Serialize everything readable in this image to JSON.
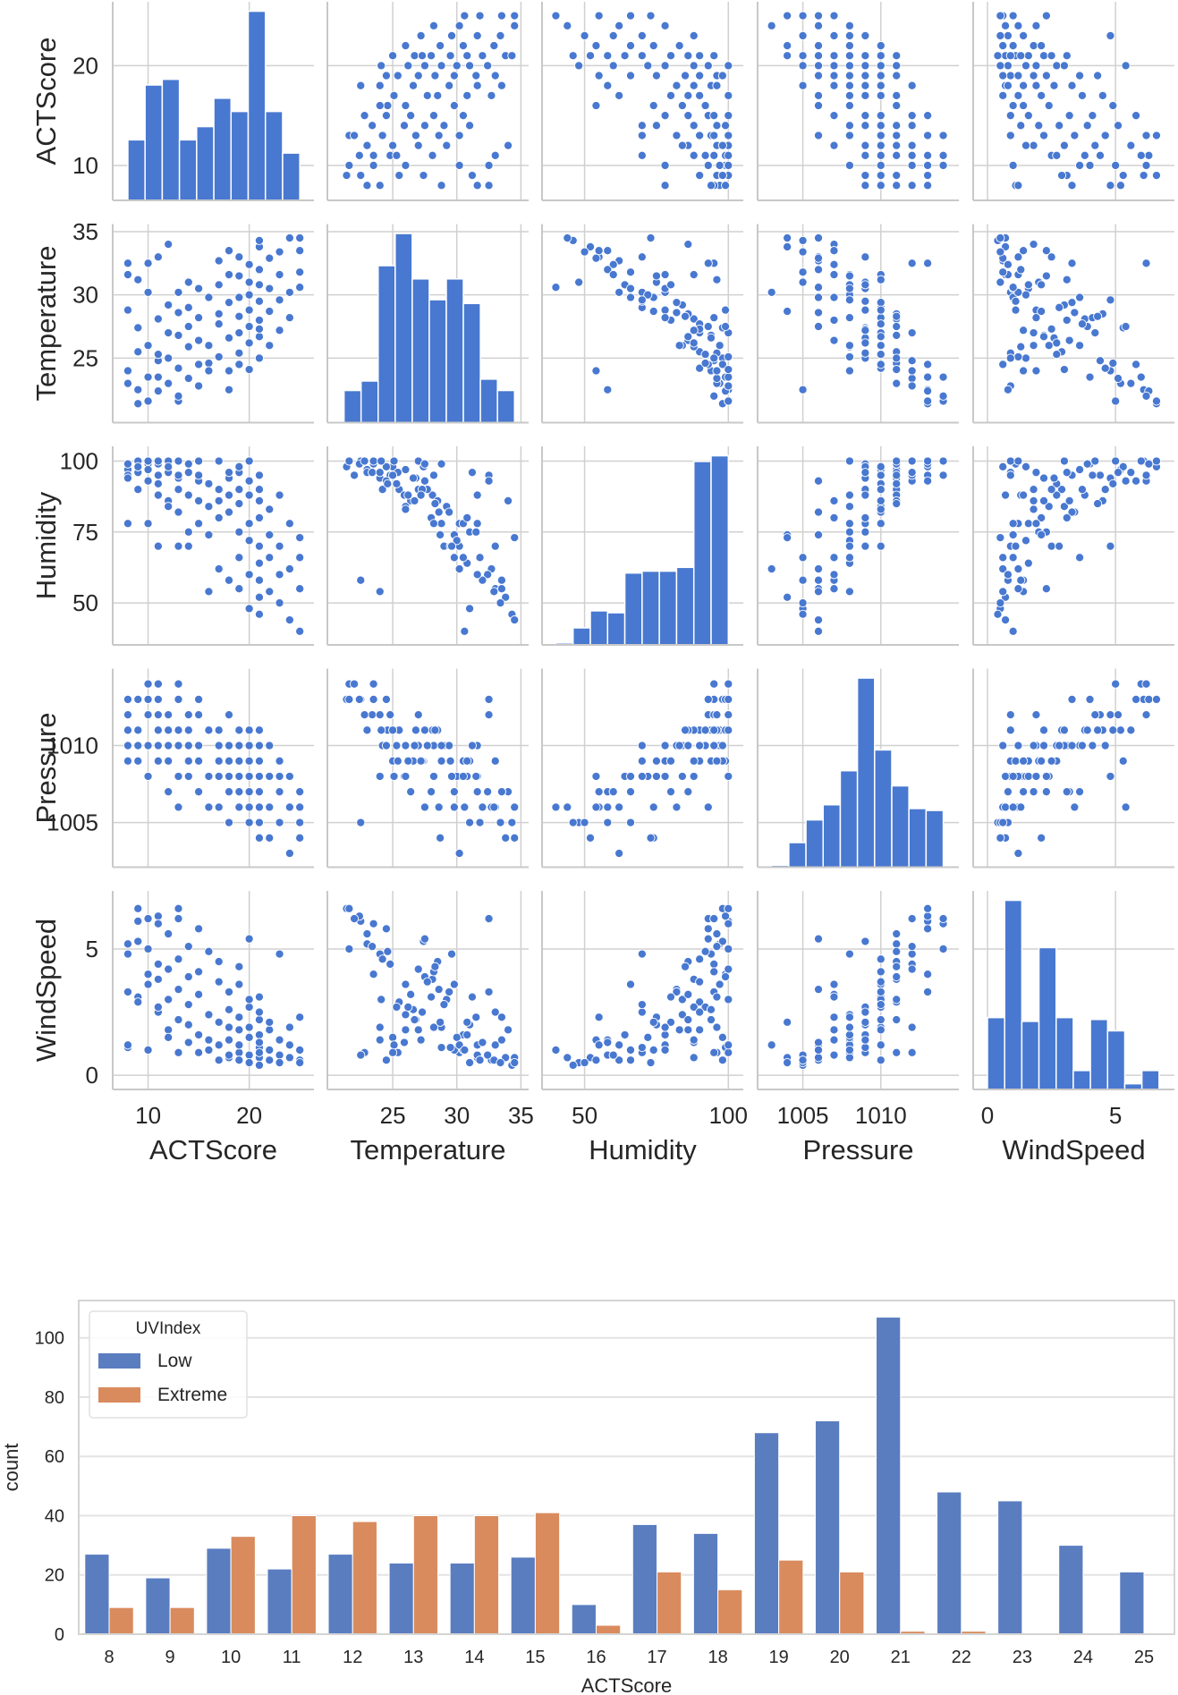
{
  "chart_data": [
    {
      "type": "scatter",
      "kind": "pairplot",
      "point_color": "#4878d0",
      "hist_color": "#4878d0",
      "grid": true,
      "variables": [
        {
          "label": "ACTScore",
          "range": [
            6.5,
            26.4
          ],
          "xticks": [
            10,
            20
          ],
          "yticks": [
            10,
            20
          ],
          "hist_range": [
            8,
            25
          ],
          "hist_relative": [
            0.32,
            0.61,
            0.64,
            0.32,
            0.39,
            0.54,
            0.47,
            1.0,
            0.47,
            0.25
          ]
        },
        {
          "label": "Temperature",
          "range": [
            19.9,
            35.6
          ],
          "xticks": [
            25,
            30,
            35
          ],
          "yticks": [
            25,
            30,
            35
          ],
          "hist_range": [
            21.2,
            34.5
          ],
          "hist_relative": [
            0.17,
            0.22,
            0.83,
            1.0,
            0.76,
            0.65,
            0.76,
            0.63,
            0.23,
            0.17
          ]
        },
        {
          "label": "Humidity",
          "range": [
            35.2,
            105.2
          ],
          "xticks": [
            50,
            100
          ],
          "yticks": [
            50,
            75,
            100
          ],
          "hist_range": [
            40,
            100
          ],
          "hist_relative": [
            0.01,
            0.09,
            0.18,
            0.17,
            0.38,
            0.39,
            0.39,
            0.41,
            0.97,
            1.0
          ]
        },
        {
          "label": "Pressure",
          "range": [
            1002.1,
            1015.0
          ],
          "xticks": [
            1005,
            1010
          ],
          "yticks": [
            1005,
            1010
          ],
          "hist_range": [
            1003,
            1014
          ],
          "hist_relative": [
            0.01,
            0.13,
            0.25,
            0.33,
            0.51,
            1.0,
            0.62,
            0.43,
            0.31,
            0.3
          ]
        },
        {
          "label": "WindSpeed",
          "range": [
            -0.56,
            7.3
          ],
          "xticks": [
            0,
            5
          ],
          "yticks": [
            0,
            5
          ],
          "hist_range": [
            0,
            6.7
          ],
          "hist_relative": [
            0.38,
            1.0,
            0.36,
            0.75,
            0.38,
            0.1,
            0.37,
            0.31,
            0.03,
            0.1
          ]
        }
      ],
      "records": [
        [
          8,
          23.0,
          97,
          1011,
          5.2
        ],
        [
          8,
          28.8,
          99,
          1009,
          1.1
        ],
        [
          8,
          32.5,
          95,
          1013,
          3.3
        ],
        [
          8,
          24.0,
          94,
          1012,
          4.8
        ],
        [
          8,
          31.6,
          78,
          1010,
          1.2
        ],
        [
          9,
          22.5,
          100,
          1013,
          6.1
        ],
        [
          9,
          31.2,
          96,
          1010,
          3.1
        ],
        [
          9,
          25.5,
          90,
          1011,
          2.9
        ],
        [
          9,
          27.4,
          98,
          1009,
          5.3
        ],
        [
          9,
          21.4,
          98,
          1013,
          6.6
        ],
        [
          10,
          23.5,
          99,
          1013,
          4.0
        ],
        [
          10,
          32.5,
          93,
          1012,
          6.2
        ],
        [
          10,
          21.6,
          100,
          1014,
          5.0
        ],
        [
          10,
          26.0,
          97,
          1010,
          3.6
        ],
        [
          10,
          30.2,
          78,
          1008,
          1.0
        ],
        [
          11,
          24.8,
          95,
          1012,
          4.4
        ],
        [
          11,
          28.1,
          88,
          1011,
          3.8
        ],
        [
          11,
          33.0,
          70,
          1009,
          2.5
        ],
        [
          11,
          22.4,
          99,
          1013,
          6.3
        ],
        [
          11,
          25.3,
          92,
          1010,
          2.7
        ],
        [
          11,
          23.5,
          100,
          1014,
          6.0
        ],
        [
          12,
          34.0,
          86,
          1007,
          1.8
        ],
        [
          12,
          27.0,
          100,
          1012,
          4.2
        ],
        [
          12,
          23.0,
          96,
          1011,
          5.6
        ],
        [
          12,
          29.2,
          84,
          1010,
          3.0
        ],
        [
          12,
          25.0,
          98,
          1009,
          1.5
        ],
        [
          13,
          21.6,
          100,
          1013,
          6.6
        ],
        [
          13,
          30.2,
          70,
          1008,
          0.9
        ],
        [
          13,
          26.8,
          94,
          1011,
          2.2
        ],
        [
          13,
          24.2,
          90,
          1010,
          4.6
        ],
        [
          13,
          28.6,
          82,
          1006,
          3.4
        ],
        [
          13,
          22.0,
          95,
          1014,
          6.2
        ],
        [
          14,
          27.5,
          99,
          1011,
          3.9
        ],
        [
          14,
          23.4,
          96,
          1012,
          5.1
        ],
        [
          14,
          31.0,
          75,
          1009,
          2.0
        ],
        [
          14,
          25.9,
          88,
          1008,
          1.3
        ],
        [
          14,
          29.0,
          70,
          1010,
          2.8
        ],
        [
          15,
          24.5,
          93,
          1013,
          5.8
        ],
        [
          15,
          30.5,
          78,
          1009,
          1.6
        ],
        [
          15,
          26.4,
          86,
          1007,
          3.2
        ],
        [
          15,
          28.2,
          95,
          1010,
          4.1
        ],
        [
          15,
          22.8,
          100,
          1012,
          0.9
        ],
        [
          16,
          26.0,
          84,
          1008,
          2.4
        ],
        [
          16,
          29.8,
          74,
          1006,
          1.0
        ],
        [
          16,
          24.6,
          92,
          1011,
          4.9
        ],
        [
          16,
          24.0,
          54,
          1008,
          1.4
        ],
        [
          17,
          30.8,
          80,
          1009,
          2.1
        ],
        [
          17,
          27.7,
          90,
          1010,
          3.7
        ],
        [
          17,
          25.1,
          100,
          1008,
          1.2
        ],
        [
          17,
          32.7,
          62,
          1006,
          0.6
        ],
        [
          17,
          28.5,
          86,
          1011,
          4.5
        ],
        [
          18,
          26.6,
          94,
          1009,
          2.6
        ],
        [
          18,
          33.5,
          58,
          1007,
          1.4
        ],
        [
          18,
          29.4,
          82,
          1010,
          3.3
        ],
        [
          18,
          24.0,
          96,
          1012,
          1.9
        ],
        [
          18,
          31.6,
          88,
          1008,
          0.7
        ],
        [
          18,
          22.5,
          58,
          1005,
          0.8
        ],
        [
          19,
          27.0,
          90,
          1010,
          1.8
        ],
        [
          19,
          31.5,
          75,
          1008,
          2.3
        ],
        [
          19,
          25.4,
          96,
          1009,
          0.9
        ],
        [
          19,
          29.8,
          66,
          1007,
          3.6
        ],
        [
          19,
          33.0,
          55,
          1006,
          1.2
        ],
        [
          19,
          28.3,
          85,
          1011,
          4.3
        ],
        [
          19,
          24.5,
          98,
          1010,
          0.6
        ],
        [
          20,
          30.0,
          72,
          1008,
          1.5
        ],
        [
          20,
          26.2,
          88,
          1009,
          2.7
        ],
        [
          20,
          32.4,
          60,
          1007,
          0.8
        ],
        [
          20,
          28.8,
          78,
          1010,
          1.9
        ],
        [
          20,
          24.1,
          100,
          1011,
          3.0
        ],
        [
          20,
          31.0,
          48,
          1005,
          0.5
        ],
        [
          20,
          27.5,
          93,
          1006,
          5.4
        ],
        [
          21,
          29.5,
          70,
          1009,
          1.1
        ],
        [
          21,
          33.8,
          52,
          1004,
          0.7
        ],
        [
          21,
          26.7,
          86,
          1010,
          2.2
        ],
        [
          21,
          30.8,
          64,
          1008,
          1.6
        ],
        [
          21,
          25.0,
          95,
          1011,
          0.9
        ],
        [
          21,
          28.0,
          80,
          1007,
          3.1
        ],
        [
          21,
          32.0,
          58,
          1006,
          1.3
        ],
        [
          21,
          27.3,
          90,
          1009,
          2.5
        ],
        [
          21,
          34.3,
          46,
          1005,
          0.4
        ],
        [
          22,
          30.5,
          66,
          1008,
          1.0
        ],
        [
          22,
          26.0,
          83,
          1010,
          1.8
        ],
        [
          22,
          32.9,
          54,
          1006,
          0.6
        ],
        [
          22,
          28.7,
          74,
          1004,
          2.1
        ],
        [
          23,
          31.6,
          60,
          1007,
          0.8
        ],
        [
          23,
          27.2,
          88,
          1009,
          1.4
        ],
        [
          23,
          33.4,
          50,
          1005,
          0.5
        ],
        [
          23,
          29.6,
          70,
          1008,
          4.8
        ],
        [
          24,
          30.2,
          62,
          1003,
          1.2
        ],
        [
          24,
          34.5,
          44,
          1006,
          0.7
        ],
        [
          24,
          28.2,
          78,
          1008,
          1.9
        ],
        [
          25,
          31.8,
          66,
          1005,
          0.6
        ],
        [
          25,
          33.5,
          55,
          1007,
          2.3
        ],
        [
          25,
          30.6,
          40,
          1006,
          1.0
        ],
        [
          25,
          34.5,
          73,
          1004,
          0.5
        ]
      ]
    },
    {
      "type": "bar",
      "categories": [
        8,
        9,
        10,
        11,
        12,
        13,
        14,
        15,
        16,
        17,
        18,
        19,
        20,
        21,
        22,
        23,
        24,
        25
      ],
      "series": [
        {
          "name": "Low",
          "color": "#5a7dc0",
          "values": [
            27,
            19,
            29,
            22,
            27,
            24,
            24,
            26,
            10,
            37,
            34,
            68,
            72,
            107,
            48,
            45,
            30,
            21
          ]
        },
        {
          "name": "Extreme",
          "color": "#d98b5e",
          "values": [
            9,
            9,
            33,
            40,
            38,
            40,
            40,
            41,
            3,
            21,
            15,
            25,
            21,
            1,
            1,
            0,
            0,
            0
          ]
        }
      ],
      "xlabel": "ACTScore",
      "ylabel": "count",
      "yticks": [
        0,
        20,
        40,
        60,
        80,
        100
      ],
      "ylim": [
        0,
        112.6
      ],
      "legend_title": "UVIndex",
      "legend_placement": "top-left",
      "grid": true
    }
  ]
}
